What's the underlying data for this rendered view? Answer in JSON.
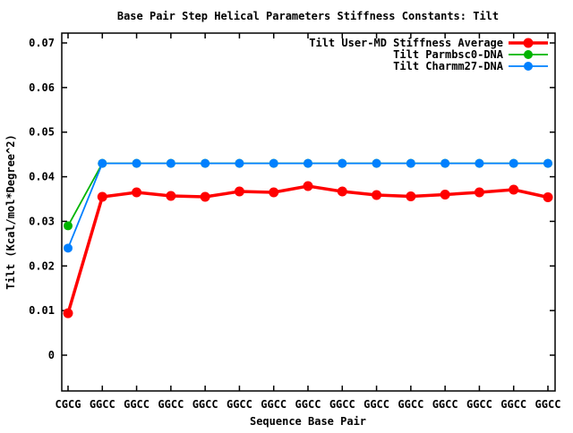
{
  "chart_data": {
    "type": "line",
    "title": "Base Pair Step Helical Parameters Stiffness Constants: Tilt",
    "xlabel": "Sequence Base Pair",
    "ylabel": "Tilt (Kcal/mol*Degree^2)",
    "grid": false,
    "legend_position": "top-right-inside",
    "categories": [
      "CGCG",
      "GGCC",
      "GGCC",
      "GGCC",
      "GGCC",
      "GGCC",
      "GGCC",
      "GGCC",
      "GGCC",
      "GGCC",
      "GGCC",
      "GGCC",
      "GGCC",
      "GGCC",
      "GGCC"
    ],
    "y_ticks": [
      0,
      0.01,
      0.02,
      0.03,
      0.04,
      0.05,
      0.06,
      0.07
    ],
    "y_tick_labels": [
      "0",
      "0.01",
      "0.02",
      "0.03",
      "0.04",
      "0.05",
      "0.06",
      "0.07"
    ],
    "ylim": [
      -0.008,
      0.0725
    ],
    "series": [
      {
        "name": "Tilt User-MD Stiffness Average",
        "color": "#ff0000",
        "marker": "circle",
        "marker_radius": 5.5,
        "line_width": 3.5,
        "values": [
          0.0094,
          0.0355,
          0.0365,
          0.0357,
          0.0355,
          0.0367,
          0.0365,
          0.0379,
          0.0367,
          0.0359,
          0.0356,
          0.036,
          0.0365,
          0.0371,
          0.0354
        ]
      },
      {
        "name": "Tilt Parmbsc0-DNA",
        "color": "#00b400",
        "marker": "circle",
        "marker_radius": 5,
        "line_width": 1.8,
        "values": [
          0.029,
          0.043,
          0.043,
          0.043,
          0.043,
          0.043,
          0.043,
          0.043,
          0.043,
          0.043,
          0.043,
          0.043,
          0.043,
          0.043,
          0.043
        ]
      },
      {
        "name": "Tilt Charmm27-DNA",
        "color": "#0080ff",
        "marker": "circle",
        "marker_radius": 5,
        "line_width": 1.8,
        "values": [
          0.024,
          0.043,
          0.043,
          0.043,
          0.043,
          0.043,
          0.043,
          0.043,
          0.043,
          0.043,
          0.043,
          0.043,
          0.043,
          0.043,
          0.043
        ]
      }
    ]
  }
}
